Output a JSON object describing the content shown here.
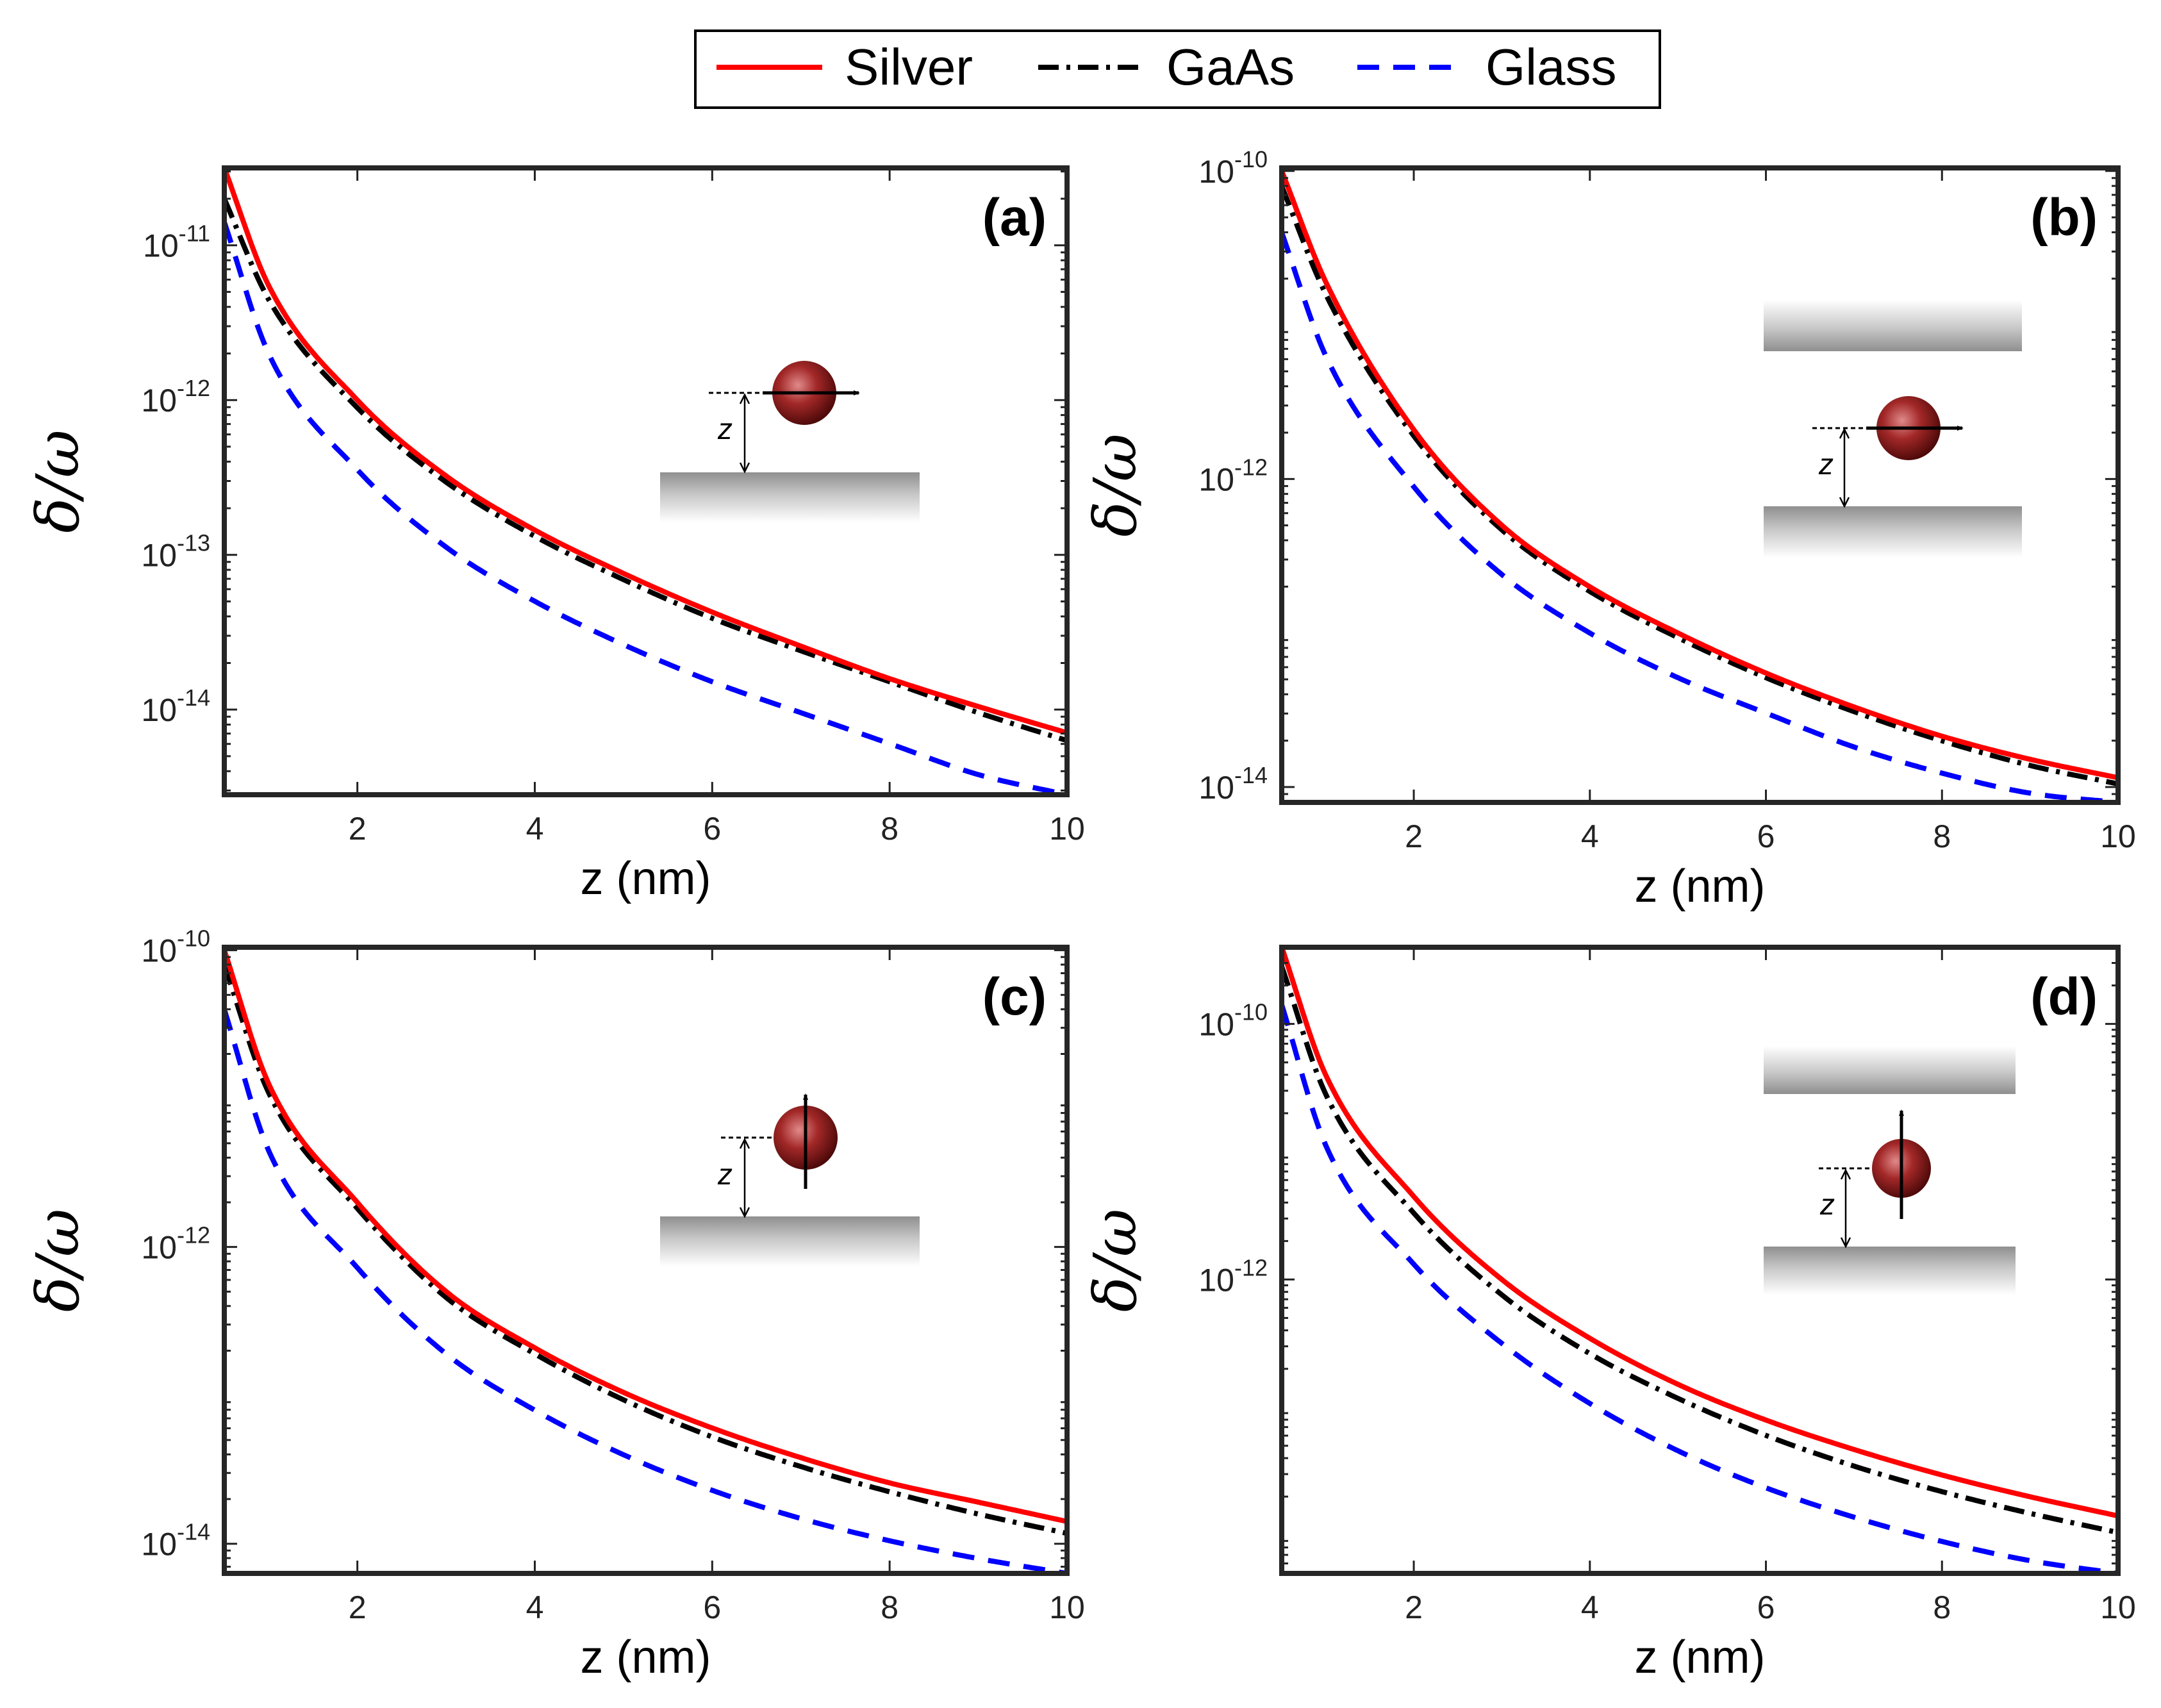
{
  "legend": {
    "entries": [
      {
        "name": "Silver",
        "color": "#ff0000",
        "style": "solid"
      },
      {
        "name": "GaAs",
        "color": "#000000",
        "style": "dashdot"
      },
      {
        "name": "Glass",
        "color": "#0000ff",
        "style": "dashed"
      }
    ]
  },
  "chart_data": [
    {
      "type": "line",
      "panel_label": "(a)",
      "xlabel": "z (nm)",
      "ylabel": "δ/ω",
      "yscale": "log",
      "xlim": [
        0.5,
        10
      ],
      "ylim_exp": [
        -14.55,
        -10.5
      ],
      "xticks": [
        2,
        4,
        6,
        8,
        10
      ],
      "xtick_labels": [
        "2",
        "4",
        "6",
        "8",
        "10"
      ],
      "yticks_exp": [
        -14,
        -13,
        -12,
        -11
      ],
      "ytick_labels": [
        {
          "base": "10",
          "exp": "-14"
        },
        {
          "base": "10",
          "exp": "-13"
        },
        {
          "base": "10",
          "exp": "-12"
        },
        {
          "base": "10",
          "exp": "-11"
        }
      ],
      "inset": "parallel-dipole-single-surface",
      "series": [
        {
          "name": "Silver",
          "anchors": [
            [
              0.5,
              -10.5
            ],
            [
              1,
              -11.26
            ],
            [
              2,
              -12.0
            ],
            [
              3,
              -12.49
            ],
            [
              4,
              -12.84
            ],
            [
              5,
              -13.12
            ],
            [
              6,
              -13.37
            ],
            [
              7,
              -13.59
            ],
            [
              8,
              -13.8
            ],
            [
              9,
              -13.98
            ],
            [
              10,
              -14.15
            ]
          ]
        },
        {
          "name": "GaAs",
          "anchors": [
            [
              0.5,
              -10.7
            ],
            [
              1,
              -11.35
            ],
            [
              2,
              -12.05
            ],
            [
              3,
              -12.53
            ],
            [
              4,
              -12.88
            ],
            [
              5,
              -13.16
            ],
            [
              6,
              -13.41
            ],
            [
              7,
              -13.62
            ],
            [
              8,
              -13.82
            ],
            [
              9,
              -14.02
            ],
            [
              10,
              -14.2
            ]
          ]
        },
        {
          "name": "Glass",
          "anchors": [
            [
              0.5,
              -10.85
            ],
            [
              1,
              -11.7
            ],
            [
              2,
              -12.45
            ],
            [
              3,
              -12.95
            ],
            [
              4,
              -13.3
            ],
            [
              5,
              -13.58
            ],
            [
              6,
              -13.82
            ],
            [
              7,
              -14.02
            ],
            [
              8,
              -14.22
            ],
            [
              9,
              -14.42
            ],
            [
              10,
              -14.55
            ]
          ]
        }
      ]
    },
    {
      "type": "line",
      "panel_label": "(b)",
      "xlabel": "z (nm)",
      "ylabel": "δ/ω",
      "yscale": "log",
      "xlim": [
        0.5,
        10
      ],
      "ylim_exp": [
        -14.1,
        -9.98
      ],
      "xticks": [
        2,
        4,
        6,
        8,
        10
      ],
      "xtick_labels": [
        "2",
        "4",
        "6",
        "8",
        "10"
      ],
      "yticks_exp": [
        -14,
        -12,
        -10
      ],
      "ytick_labels": [
        {
          "base": "10",
          "exp": "-14"
        },
        {
          "base": "10",
          "exp": "-12"
        },
        {
          "base": "10",
          "exp": "-10"
        }
      ],
      "inset": "parallel-dipole-two-surfaces",
      "series": [
        {
          "name": "Silver",
          "anchors": [
            [
              0.5,
              -10.0
            ],
            [
              1,
              -10.72
            ],
            [
              2,
              -11.68
            ],
            [
              3,
              -12.3
            ],
            [
              4,
              -12.7
            ],
            [
              5,
              -13.0
            ],
            [
              6,
              -13.26
            ],
            [
              7,
              -13.48
            ],
            [
              8,
              -13.67
            ],
            [
              9,
              -13.82
            ],
            [
              10,
              -13.94
            ]
          ]
        },
        {
          "name": "GaAs",
          "anchors": [
            [
              0.5,
              -10.1
            ],
            [
              1,
              -10.8
            ],
            [
              2,
              -11.72
            ],
            [
              3,
              -12.33
            ],
            [
              4,
              -12.73
            ],
            [
              5,
              -13.03
            ],
            [
              6,
              -13.29
            ],
            [
              7,
              -13.51
            ],
            [
              8,
              -13.7
            ],
            [
              9,
              -13.86
            ],
            [
              10,
              -13.98
            ]
          ]
        },
        {
          "name": "Glass",
          "anchors": [
            [
              0.5,
              -10.4
            ],
            [
              1,
              -11.2
            ],
            [
              2,
              -12.05
            ],
            [
              3,
              -12.62
            ],
            [
              4,
              -13.0
            ],
            [
              5,
              -13.29
            ],
            [
              6,
              -13.52
            ],
            [
              7,
              -13.74
            ],
            [
              8,
              -13.91
            ],
            [
              9,
              -14.04
            ],
            [
              10,
              -14.1
            ]
          ]
        }
      ]
    },
    {
      "type": "line",
      "panel_label": "(c)",
      "xlabel": "z (nm)",
      "ylabel": "δ/ω",
      "yscale": "log",
      "xlim": [
        0.5,
        10
      ],
      "ylim_exp": [
        -14.2,
        -9.98
      ],
      "xticks": [
        2,
        4,
        6,
        8,
        10
      ],
      "xtick_labels": [
        "2",
        "4",
        "6",
        "8",
        "10"
      ],
      "yticks_exp": [
        -14,
        -12,
        -10
      ],
      "ytick_labels": [
        {
          "base": "10",
          "exp": "-14"
        },
        {
          "base": "10",
          "exp": "-12"
        },
        {
          "base": "10",
          "exp": "-10"
        }
      ],
      "inset": "perpendicular-dipole-single-surface",
      "series": [
        {
          "name": "Silver",
          "anchors": [
            [
              0.5,
              -10.0
            ],
            [
              1,
              -10.9
            ],
            [
              2,
              -11.7
            ],
            [
              3,
              -12.3
            ],
            [
              4,
              -12.68
            ],
            [
              5,
              -12.98
            ],
            [
              6,
              -13.22
            ],
            [
              7,
              -13.42
            ],
            [
              8,
              -13.59
            ],
            [
              9,
              -13.72
            ],
            [
              10,
              -13.85
            ]
          ]
        },
        {
          "name": "GaAs",
          "anchors": [
            [
              0.5,
              -10.1
            ],
            [
              1,
              -10.96
            ],
            [
              2,
              -11.74
            ],
            [
              3,
              -12.34
            ],
            [
              4,
              -12.72
            ],
            [
              5,
              -13.03
            ],
            [
              6,
              -13.28
            ],
            [
              7,
              -13.48
            ],
            [
              8,
              -13.65
            ],
            [
              9,
              -13.8
            ],
            [
              10,
              -13.93
            ]
          ]
        },
        {
          "name": "Glass",
          "anchors": [
            [
              0.5,
              -10.4
            ],
            [
              1,
              -11.35
            ],
            [
              2,
              -12.14
            ],
            [
              3,
              -12.72
            ],
            [
              4,
              -13.1
            ],
            [
              5,
              -13.4
            ],
            [
              6,
              -13.64
            ],
            [
              7,
              -13.83
            ],
            [
              8,
              -13.98
            ],
            [
              9,
              -14.1
            ],
            [
              10,
              -14.2
            ]
          ]
        }
      ]
    },
    {
      "type": "line",
      "panel_label": "(d)",
      "xlabel": "z (nm)",
      "ylabel": "δ/ω",
      "yscale": "log",
      "xlim": [
        0.5,
        10
      ],
      "ylim_exp": [
        -14.3,
        -9.4
      ],
      "xticks": [
        2,
        4,
        6,
        8,
        10
      ],
      "xtick_labels": [
        "2",
        "4",
        "6",
        "8",
        "10"
      ],
      "yticks_exp": [
        -12,
        -10
      ],
      "ytick_labels": [
        {
          "base": "10",
          "exp": "-12"
        },
        {
          "base": "10",
          "exp": "-10"
        }
      ],
      "inset": "perpendicular-dipole-two-surfaces",
      "series": [
        {
          "name": "Silver",
          "anchors": [
            [
              0.5,
              -9.4
            ],
            [
              1,
              -10.4
            ],
            [
              2,
              -11.35
            ],
            [
              3,
              -12.0
            ],
            [
              4,
              -12.46
            ],
            [
              5,
              -12.82
            ],
            [
              6,
              -13.1
            ],
            [
              7,
              -13.33
            ],
            [
              8,
              -13.53
            ],
            [
              9,
              -13.7
            ],
            [
              10,
              -13.85
            ]
          ]
        },
        {
          "name": "GaAs",
          "anchors": [
            [
              0.5,
              -9.55
            ],
            [
              1,
              -10.55
            ],
            [
              2,
              -11.48
            ],
            [
              3,
              -12.12
            ],
            [
              4,
              -12.58
            ],
            [
              5,
              -12.93
            ],
            [
              6,
              -13.22
            ],
            [
              7,
              -13.46
            ],
            [
              8,
              -13.66
            ],
            [
              9,
              -13.83
            ],
            [
              10,
              -13.98
            ]
          ]
        },
        {
          "name": "Glass",
          "anchors": [
            [
              0.5,
              -9.85
            ],
            [
              1,
              -10.95
            ],
            [
              2,
              -11.88
            ],
            [
              3,
              -12.5
            ],
            [
              4,
              -12.97
            ],
            [
              5,
              -13.34
            ],
            [
              6,
              -13.63
            ],
            [
              7,
              -13.86
            ],
            [
              8,
              -14.05
            ],
            [
              9,
              -14.2
            ],
            [
              10,
              -14.3
            ]
          ]
        }
      ]
    }
  ]
}
